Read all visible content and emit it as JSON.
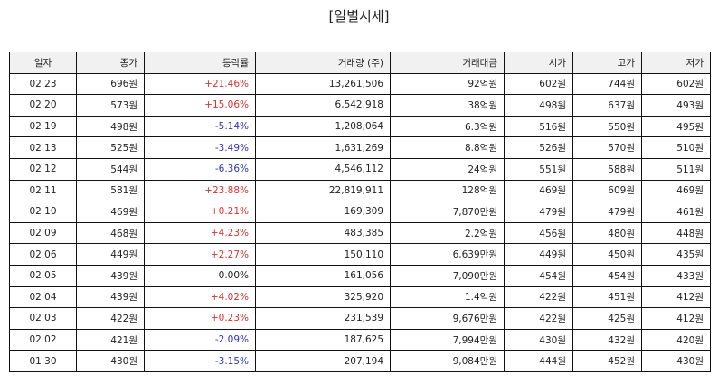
{
  "title": "[일별시세]",
  "headers": [
    "일자",
    "종가",
    "등락률",
    "거래량 (주)",
    "거래대금",
    "시가",
    "고가",
    "저가"
  ],
  "colors": {
    "up": "#e03030",
    "down": "#3030c0"
  },
  "rows": [
    {
      "date": "02.23",
      "close": "696원",
      "change": "+21.46%",
      "dir": "up",
      "volume": "13,261,506",
      "amount": "92억원",
      "open": "602원",
      "high": "744원",
      "low": "602원"
    },
    {
      "date": "02.20",
      "close": "573원",
      "change": "+15.06%",
      "dir": "up",
      "volume": "6,542,918",
      "amount": "38억원",
      "open": "498원",
      "high": "637원",
      "low": "493원"
    },
    {
      "date": "02.19",
      "close": "498원",
      "change": "-5.14%",
      "dir": "down",
      "volume": "1,208,064",
      "amount": "6.3억원",
      "open": "516원",
      "high": "550원",
      "low": "495원"
    },
    {
      "date": "02.13",
      "close": "525원",
      "change": "-3.49%",
      "dir": "down",
      "volume": "1,631,269",
      "amount": "8.8억원",
      "open": "526원",
      "high": "570원",
      "low": "510원"
    },
    {
      "date": "02.12",
      "close": "544원",
      "change": "-6.36%",
      "dir": "down",
      "volume": "4,546,112",
      "amount": "24억원",
      "open": "551원",
      "high": "588원",
      "low": "511원"
    },
    {
      "date": "02.11",
      "close": "581원",
      "change": "+23.88%",
      "dir": "up",
      "volume": "22,819,911",
      "amount": "128억원",
      "open": "469원",
      "high": "609원",
      "low": "469원"
    },
    {
      "date": "02.10",
      "close": "469원",
      "change": "+0.21%",
      "dir": "up",
      "volume": "169,309",
      "amount": "7,870만원",
      "open": "479원",
      "high": "479원",
      "low": "461원"
    },
    {
      "date": "02.09",
      "close": "468원",
      "change": "+4.23%",
      "dir": "up",
      "volume": "483,385",
      "amount": "2.2억원",
      "open": "456원",
      "high": "480원",
      "low": "448원"
    },
    {
      "date": "02.06",
      "close": "449원",
      "change": "+2.27%",
      "dir": "up",
      "volume": "150,110",
      "amount": "6,639만원",
      "open": "449원",
      "high": "450원",
      "low": "435원"
    },
    {
      "date": "02.05",
      "close": "439원",
      "change": "0.00%",
      "dir": "flat",
      "volume": "161,056",
      "amount": "7,090만원",
      "open": "454원",
      "high": "454원",
      "low": "433원"
    },
    {
      "date": "02.04",
      "close": "439원",
      "change": "+4.02%",
      "dir": "up",
      "volume": "325,920",
      "amount": "1.4억원",
      "open": "422원",
      "high": "451원",
      "low": "412원"
    },
    {
      "date": "02.03",
      "close": "422원",
      "change": "+0.23%",
      "dir": "up",
      "volume": "231,539",
      "amount": "9,676만원",
      "open": "422원",
      "high": "425원",
      "low": "412원"
    },
    {
      "date": "02.02",
      "close": "421원",
      "change": "-2.09%",
      "dir": "down",
      "volume": "187,625",
      "amount": "7,994만원",
      "open": "430원",
      "high": "432원",
      "low": "420원"
    },
    {
      "date": "01.30",
      "close": "430원",
      "change": "-3.15%",
      "dir": "down",
      "volume": "207,194",
      "amount": "9,084만원",
      "open": "444원",
      "high": "452원",
      "low": "430원"
    }
  ]
}
